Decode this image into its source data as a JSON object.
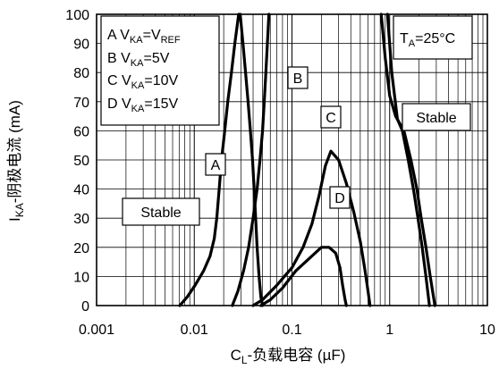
{
  "chart_data": {
    "type": "line",
    "xscale": "log",
    "xlim": [
      0.001,
      10
    ],
    "ylim": [
      0,
      100
    ],
    "grid": true,
    "xlabel": "C_L-负载电容 (µF)",
    "ylabel": "I_KA-阴极电流 (mA)",
    "x_ticks": [
      "0.001",
      "0.01",
      "0.1",
      "1",
      "10"
    ],
    "y_ticks": [
      "0",
      "10",
      "20",
      "30",
      "40",
      "50",
      "60",
      "70",
      "80",
      "90",
      "100"
    ],
    "legend": [
      "A V_KA=V_REF",
      "B V_KA=5V",
      "C V_KA=10V",
      "D V_KA=15V"
    ],
    "condition": "T_A=25°C",
    "annotations": [
      "Stable",
      "Stable",
      "A",
      "B",
      "C",
      "D"
    ],
    "series": [
      {
        "name": "A",
        "segments": [
          [
            [
              0.0071,
              0
            ],
            [
              0.0085,
              3
            ],
            [
              0.0102,
              7
            ],
            [
              0.0125,
              12
            ],
            [
              0.0145,
              17
            ],
            [
              0.016,
              23
            ],
            [
              0.017,
              30
            ],
            [
              0.018,
              40
            ],
            [
              0.019,
              50
            ],
            [
              0.0205,
              60
            ],
            [
              0.022,
              70
            ],
            [
              0.024,
              80
            ],
            [
              0.026,
              90
            ],
            [
              0.0285,
              100
            ]
          ],
          [
            [
              0.0295,
              100
            ],
            [
              0.0315,
              90
            ],
            [
              0.0335,
              80
            ],
            [
              0.0355,
              70
            ],
            [
              0.0375,
              60
            ],
            [
              0.0395,
              50
            ],
            [
              0.041,
              40
            ],
            [
              0.0425,
              30
            ],
            [
              0.044,
              20
            ],
            [
              0.046,
              10
            ],
            [
              0.048,
              3
            ],
            [
              0.05,
              0
            ]
          ]
        ]
      },
      {
        "name": "B",
        "segments": [
          [
            [
              0.0245,
              0
            ],
            [
              0.028,
              5
            ],
            [
              0.032,
              12
            ],
            [
              0.036,
              20
            ],
            [
              0.04,
              30
            ],
            [
              0.044,
              40
            ],
            [
              0.047,
              50
            ],
            [
              0.05,
              60
            ],
            [
              0.052,
              70
            ],
            [
              0.054,
              80
            ],
            [
              0.056,
              90
            ],
            [
              0.058,
              100
            ]
          ],
          [
            [
              0.95,
              100
            ],
            [
              1.05,
              80
            ],
            [
              1.2,
              64
            ],
            [
              1.35,
              60
            ],
            [
              1.55,
              50
            ],
            [
              1.75,
              40
            ],
            [
              1.95,
              30
            ],
            [
              2.15,
              20
            ],
            [
              2.35,
              10
            ],
            [
              2.55,
              0
            ]
          ]
        ]
      },
      {
        "name": "C",
        "segments": [
          [
            [
              0.04,
              0
            ],
            [
              0.05,
              2
            ],
            [
              0.07,
              7
            ],
            [
              0.1,
              13
            ],
            [
              0.13,
              20
            ],
            [
              0.16,
              28
            ],
            [
              0.19,
              38
            ],
            [
              0.22,
              48
            ],
            [
              0.25,
              53
            ],
            [
              0.3,
              50
            ],
            [
              0.36,
              42
            ],
            [
              0.43,
              32
            ],
            [
              0.5,
              22
            ],
            [
              0.56,
              12
            ],
            [
              0.6,
              5
            ],
            [
              0.63,
              0
            ]
          ],
          [
            [
              0.82,
              100
            ],
            [
              0.9,
              85
            ],
            [
              1,
              72
            ],
            [
              1.15,
              65
            ],
            [
              1.4,
              60
            ],
            [
              1.65,
              50
            ],
            [
              1.9,
              40
            ],
            [
              2.1,
              30
            ],
            [
              2.35,
              20
            ],
            [
              2.6,
              10
            ],
            [
              2.9,
              0
            ]
          ]
        ]
      },
      {
        "name": "D",
        "segments": [
          [
            [
              0.048,
              0
            ],
            [
              0.06,
              2
            ],
            [
              0.08,
              6
            ],
            [
              0.11,
              12
            ],
            [
              0.16,
              17
            ],
            [
              0.2,
              20
            ],
            [
              0.24,
              20
            ],
            [
              0.28,
              18
            ],
            [
              0.31,
              13
            ],
            [
              0.33,
              7
            ],
            [
              0.35,
              2
            ],
            [
              0.36,
              0
            ]
          ]
        ]
      }
    ]
  }
}
